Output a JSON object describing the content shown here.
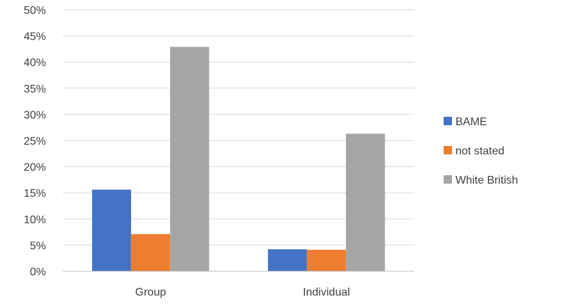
{
  "chart_data": {
    "type": "bar",
    "categories": [
      "Group",
      "Individual"
    ],
    "series": [
      {
        "name": "BAME",
        "color": "#4472C4",
        "values": [
          15.6,
          4.2
        ]
      },
      {
        "name": "not stated",
        "color": "#ED7D31",
        "values": [
          7.1,
          4.1
        ]
      },
      {
        "name": "White British",
        "color": "#A5A5A5",
        "values": [
          42.9,
          26.3
        ]
      }
    ],
    "ylim": [
      0,
      50
    ],
    "yticks": [
      0,
      5,
      10,
      15,
      20,
      25,
      30,
      35,
      40,
      45,
      50
    ],
    "ytick_suffix": "%",
    "grid": true,
    "legend_position": "right",
    "gridline_color": "#D9D9D9",
    "axis_color": "#BFBFBF"
  }
}
